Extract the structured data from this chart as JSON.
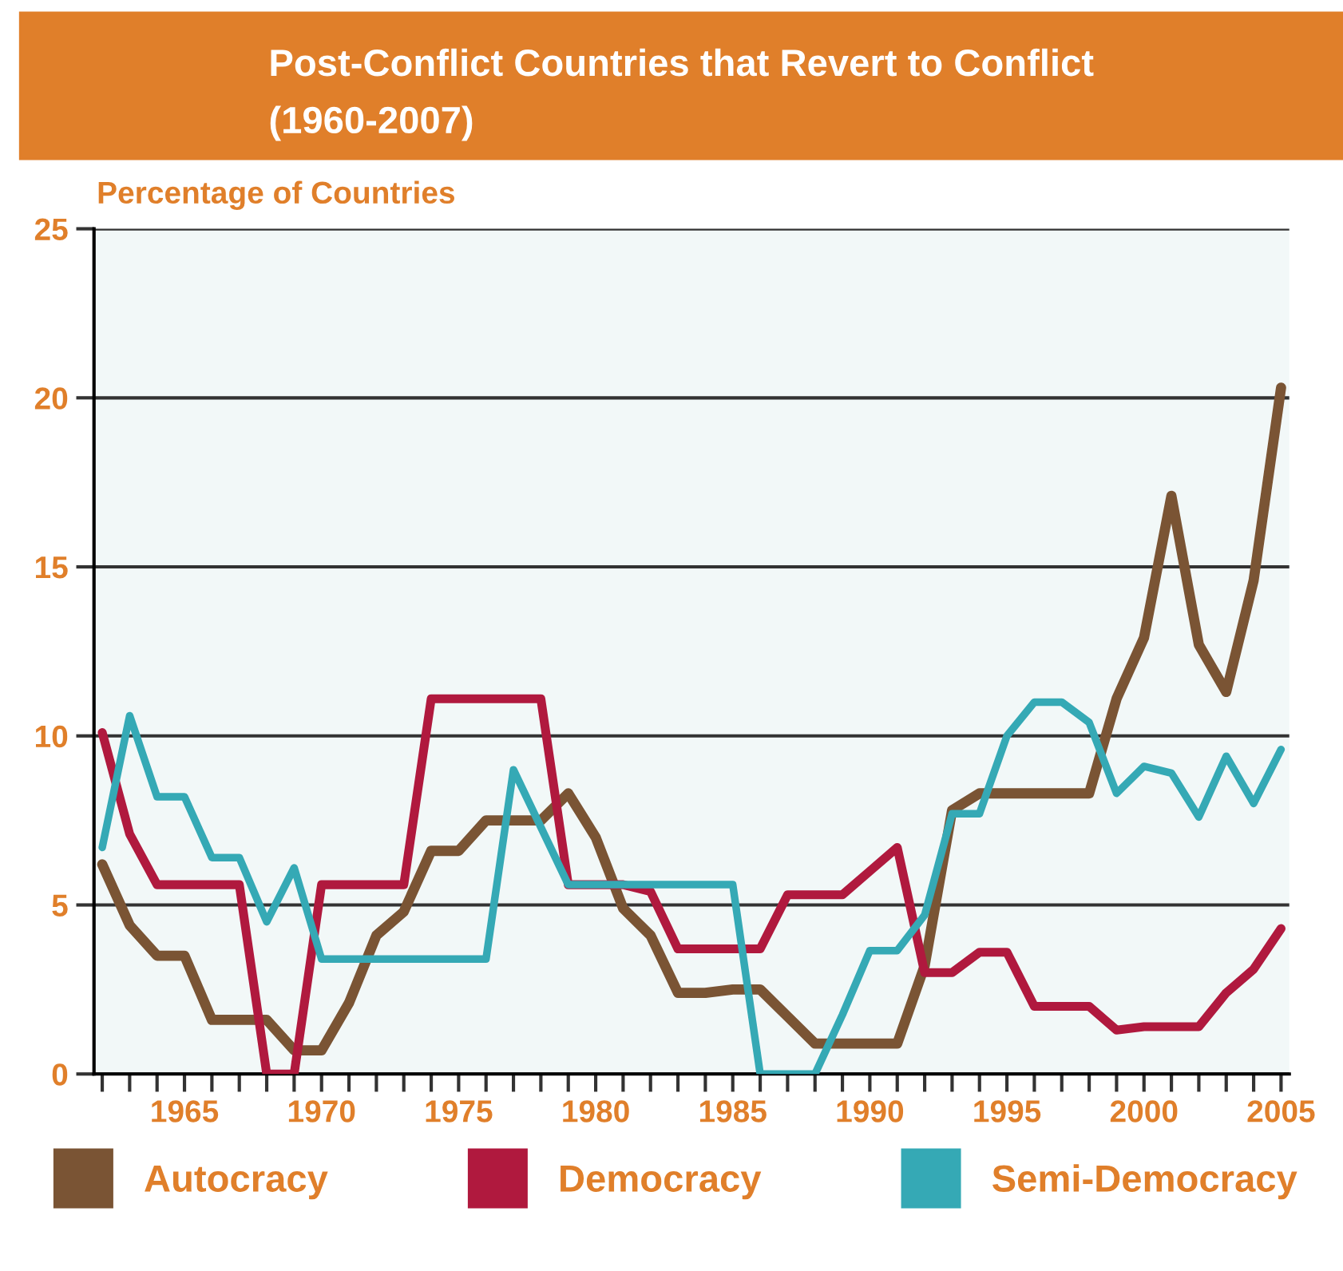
{
  "chart_data": {
    "type": "line",
    "title": "Post-Conflict Countries that Revert to Conflict",
    "subtitle": "(1960-2007)",
    "ylabel": "Percentage of Countries",
    "x": [
      1962,
      1963,
      1964,
      1965,
      1966,
      1967,
      1968,
      1969,
      1970,
      1971,
      1972,
      1973,
      1974,
      1975,
      1976,
      1977,
      1978,
      1979,
      1980,
      1981,
      1982,
      1983,
      1984,
      1985,
      1986,
      1987,
      1988,
      1989,
      1990,
      1991,
      1992,
      1993,
      1994,
      1995,
      1996,
      1997,
      1998,
      1999,
      2000,
      2001,
      2002,
      2003,
      2004,
      2005
    ],
    "series": [
      {
        "name": "Autocracy",
        "color": "#7a5434",
        "values": [
          6.2,
          4.4,
          3.5,
          3.5,
          1.6,
          1.6,
          1.6,
          0.7,
          0.7,
          2.1,
          4.1,
          4.8,
          6.6,
          6.6,
          7.5,
          7.5,
          7.5,
          8.3,
          7.0,
          4.9,
          4.1,
          2.4,
          2.4,
          2.5,
          2.5,
          1.7,
          0.9,
          0.9,
          0.9,
          0.9,
          3.2,
          7.8,
          8.3,
          8.3,
          8.3,
          8.3,
          8.3,
          11.1,
          12.9,
          17.1,
          12.7,
          11.3,
          14.6,
          20.3
        ]
      },
      {
        "name": "Democracy",
        "color": "#b0193e",
        "values": [
          10.1,
          7.1,
          5.6,
          5.6,
          5.6,
          5.6,
          0,
          0,
          5.6,
          5.6,
          5.6,
          5.6,
          11.1,
          11.1,
          11.1,
          11.1,
          11.1,
          5.6,
          5.6,
          5.6,
          5.4,
          3.7,
          3.7,
          3.7,
          3.7,
          5.3,
          5.3,
          5.3,
          6.0,
          6.7,
          3.0,
          3.0,
          3.6,
          3.6,
          2.0,
          2.0,
          2.0,
          1.3,
          1.4,
          1.4,
          1.4,
          2.4,
          3.1,
          4.3
        ]
      },
      {
        "name": "Semi-Democracy",
        "color": "#35a9b5",
        "values": [
          6.7,
          10.6,
          8.2,
          8.2,
          6.4,
          6.4,
          4.5,
          6.1,
          3.4,
          3.4,
          3.4,
          3.4,
          3.4,
          3.4,
          3.4,
          9.0,
          7.3,
          5.6,
          5.6,
          5.6,
          5.6,
          5.6,
          5.6,
          5.6,
          0,
          0,
          0,
          1.75,
          3.65,
          3.65,
          4.7,
          7.7,
          7.7,
          10.0,
          11.0,
          11.0,
          10.4,
          8.3,
          9.1,
          8.9,
          7.6,
          9.4,
          8.0,
          9.6
        ]
      }
    ],
    "xlim": [
      1961.7,
      2005.3
    ],
    "xticks": [
      {
        "value": 1962,
        "label": null
      },
      {
        "value": 1963,
        "label": null
      },
      {
        "value": 1964,
        "label": null
      },
      1965,
      {
        "value": 1966,
        "label": null
      },
      {
        "value": 1967,
        "label": null
      },
      {
        "value": 1968,
        "label": null
      },
      {
        "value": 1969,
        "label": null
      },
      1970,
      {
        "value": 1971,
        "label": null
      },
      {
        "value": 1972,
        "label": null
      },
      {
        "value": 1973,
        "label": null
      },
      {
        "value": 1974,
        "label": null
      },
      1975,
      {
        "value": 1976,
        "label": null
      },
      {
        "value": 1977,
        "label": null
      },
      {
        "value": 1978,
        "label": null
      },
      {
        "value": 1979,
        "label": null
      },
      1980,
      {
        "value": 1981,
        "label": null
      },
      {
        "value": 1982,
        "label": null
      },
      {
        "value": 1983,
        "label": null
      },
      {
        "value": 1984,
        "label": null
      },
      1985,
      {
        "value": 1986,
        "label": null
      },
      {
        "value": 1987,
        "label": null
      },
      {
        "value": 1988,
        "label": null
      },
      {
        "value": 1989,
        "label": null
      },
      1990,
      {
        "value": 1991,
        "label": null
      },
      {
        "value": 1992,
        "label": null
      },
      {
        "value": 1993,
        "label": null
      },
      {
        "value": 1994,
        "label": null
      },
      1995,
      {
        "value": 1996,
        "label": null
      },
      {
        "value": 1997,
        "label": null
      },
      {
        "value": 1998,
        "label": null
      },
      {
        "value": 1999,
        "label": null
      },
      2000,
      {
        "value": 2001,
        "label": null
      },
      {
        "value": 2002,
        "label": null
      },
      {
        "value": 2003,
        "label": null
      },
      {
        "value": 2004,
        "label": null
      },
      2005
    ],
    "ylim": [
      0,
      25
    ],
    "yticks": [
      0,
      5,
      10,
      15,
      20,
      25
    ],
    "grid": "y",
    "legend": "bottom",
    "marker": "none",
    "line_style": "solid"
  }
}
